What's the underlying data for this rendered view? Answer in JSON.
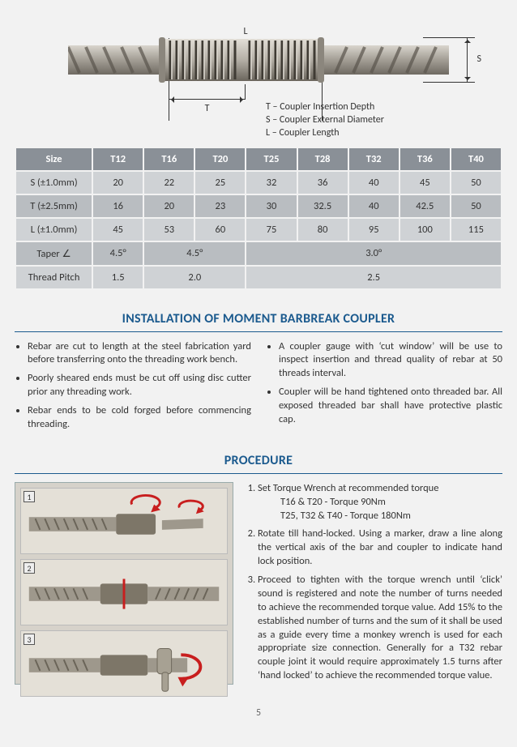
{
  "diagram": {
    "L_label": "L",
    "T_label": "T",
    "S_label": "S",
    "legend": [
      "T – Coupler Insertion Depth",
      "S – Coupler External Diameter",
      "L – Coupler Length"
    ],
    "colors": {
      "rebar_body": "#a8a39a",
      "rebar_shadow": "#6f6a62",
      "rebar_highlight": "#d9d5cd",
      "thread_light": "#cfcbc2",
      "thread_dark": "#5a554d",
      "coupler_ring": "#8b867d"
    }
  },
  "table": {
    "header": [
      "Size",
      "T12",
      "T16",
      "T20",
      "T25",
      "T28",
      "T32",
      "T36",
      "T40"
    ],
    "rows": [
      {
        "label": "S (±1.0mm)",
        "cells": [
          "20",
          "22",
          "25",
          "32",
          "36",
          "40",
          "45",
          "50"
        ]
      },
      {
        "label": "T (±2.5mm)",
        "cells": [
          "16",
          "20",
          "23",
          "30",
          "32.5",
          "40",
          "42.5",
          "50"
        ]
      },
      {
        "label": "L (±1.0mm)",
        "cells": [
          "45",
          "53",
          "60",
          "75",
          "80",
          "95",
          "100",
          "115"
        ]
      }
    ],
    "spanned": [
      {
        "label": "Taper ∠",
        "cells": [
          {
            "t": "4.5°",
            "span": 1
          },
          {
            "t": "4.5°",
            "span": 2
          },
          {
            "t": "3.0°",
            "span": 5
          }
        ]
      },
      {
        "label": "Thread Pitch",
        "cells": [
          {
            "t": "1.5",
            "span": 1
          },
          {
            "t": "2.0",
            "span": 2
          },
          {
            "t": "2.5",
            "span": 5
          }
        ]
      }
    ],
    "col_widths_pct": [
      16,
      10.5,
      10.5,
      10.5,
      10.5,
      10.5,
      10.5,
      10.5,
      10.5
    ]
  },
  "install": {
    "heading": "INSTALLATION OF MOMENT BARBREAK COUPLER",
    "left": [
      "Rebar are cut to length at the steel fabrication yard before transferring onto the threading work bench.",
      "Poorly sheared ends must be cut off using disc cutter prior any threading work.",
      "Rebar ends to be cold forged before commencing threading."
    ],
    "right": [
      "A coupler gauge with ‘cut window’ will be use to inspect insertion and thread quality of rebar at 50 threads interval.",
      "Coupler will be hand tightened onto threaded bar. All exposed threaded bar shall have protective plastic cap."
    ]
  },
  "procedure": {
    "heading": "PROCEDURE",
    "step_nums": [
      "1",
      "2",
      "3"
    ],
    "arrow_color": "#c81e1e",
    "steps": [
      "Set Torque Wrench at recommended torque",
      "Rotate till hand-locked. Using a marker, draw a line along the vertical axis of the bar and coupler to indicate hand lock position.",
      "Proceed to tighten with the torque wrench until ‘click’ sound is registered and note the number of turns needed to achieve the recommended torque value. Add 15% to the established number of turns and the sum of it shall be used as a guide every time a monkey wrench is used for each appropriate size connection. Generally for a T32 rebar couple joint it would require approximately 1.5 turns after ‘hand locked’ to achieve the recommended torque value."
    ],
    "torque_lines": [
      "T16 & T20        - Torque 90Nm",
      "T25, T32 & T40 - Torque 180Nm"
    ]
  },
  "page_number": "5"
}
